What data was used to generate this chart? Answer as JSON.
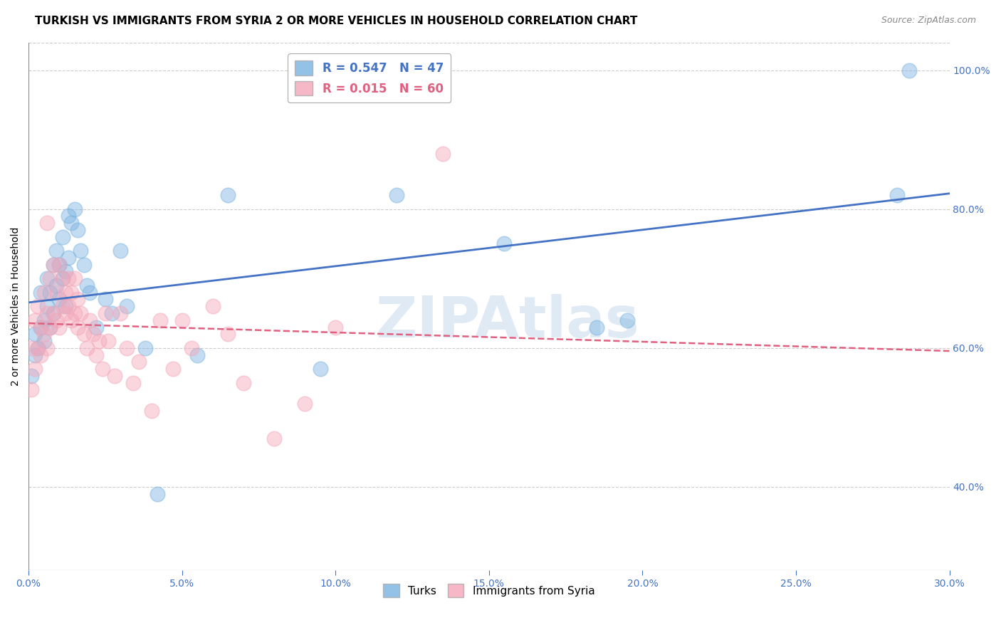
{
  "title": "TURKISH VS IMMIGRANTS FROM SYRIA 2 OR MORE VEHICLES IN HOUSEHOLD CORRELATION CHART",
  "source": "Source: ZipAtlas.com",
  "ylabel": "2 or more Vehicles in Household",
  "watermark": "ZIPAtlas",
  "legend_labels": [
    "Turks",
    "Immigrants from Syria"
  ],
  "xlim": [
    0.0,
    0.3
  ],
  "ylim": [
    0.28,
    1.04
  ],
  "xticks": [
    0.0,
    0.05,
    0.1,
    0.15,
    0.2,
    0.25,
    0.3
  ],
  "xtick_labels": [
    "0.0%",
    "5.0%",
    "10.0%",
    "15.0%",
    "20.0%",
    "25.0%",
    "30.0%"
  ],
  "yticks_right": [
    0.4,
    0.6,
    0.8,
    1.0
  ],
  "ytick_labels_right": [
    "40.0%",
    "60.0%",
    "80.0%",
    "100.0%"
  ],
  "axis_color": "#4472c4",
  "grid_color": "#cccccc",
  "background_color": "#ffffff",
  "blue_color": "#7ab3e0",
  "pink_color": "#f4a7b9",
  "blue_line_color": "#4472c4",
  "pink_line_color": "#e06080",
  "title_fontsize": 11,
  "blue_x": [
    0.001,
    0.002,
    0.002,
    0.003,
    0.004,
    0.004,
    0.005,
    0.005,
    0.006,
    0.006,
    0.007,
    0.007,
    0.008,
    0.008,
    0.009,
    0.009,
    0.01,
    0.01,
    0.011,
    0.011,
    0.012,
    0.012,
    0.013,
    0.013,
    0.014,
    0.015,
    0.016,
    0.017,
    0.018,
    0.019,
    0.02,
    0.022,
    0.025,
    0.027,
    0.03,
    0.032,
    0.038,
    0.042,
    0.055,
    0.065,
    0.095,
    0.12,
    0.155,
    0.185,
    0.195,
    0.283,
    0.287
  ],
  "blue_y": [
    0.56,
    0.59,
    0.62,
    0.6,
    0.63,
    0.68,
    0.64,
    0.61,
    0.66,
    0.7,
    0.63,
    0.68,
    0.72,
    0.65,
    0.69,
    0.74,
    0.67,
    0.72,
    0.7,
    0.76,
    0.71,
    0.66,
    0.73,
    0.79,
    0.78,
    0.8,
    0.77,
    0.74,
    0.72,
    0.69,
    0.68,
    0.63,
    0.67,
    0.65,
    0.74,
    0.66,
    0.6,
    0.39,
    0.59,
    0.82,
    0.57,
    0.82,
    0.75,
    0.63,
    0.64,
    0.82,
    1.0
  ],
  "pink_x": [
    0.001,
    0.001,
    0.002,
    0.002,
    0.003,
    0.003,
    0.004,
    0.004,
    0.005,
    0.005,
    0.006,
    0.006,
    0.006,
    0.007,
    0.007,
    0.008,
    0.008,
    0.009,
    0.009,
    0.01,
    0.01,
    0.011,
    0.011,
    0.012,
    0.012,
    0.013,
    0.013,
    0.014,
    0.014,
    0.015,
    0.015,
    0.016,
    0.016,
    0.017,
    0.018,
    0.019,
    0.02,
    0.021,
    0.022,
    0.023,
    0.024,
    0.025,
    0.026,
    0.028,
    0.03,
    0.032,
    0.034,
    0.036,
    0.04,
    0.043,
    0.047,
    0.05,
    0.053,
    0.06,
    0.065,
    0.07,
    0.08,
    0.09,
    0.1,
    0.135
  ],
  "pink_y": [
    0.54,
    0.6,
    0.57,
    0.64,
    0.6,
    0.66,
    0.59,
    0.63,
    0.62,
    0.68,
    0.65,
    0.6,
    0.78,
    0.63,
    0.7,
    0.65,
    0.72,
    0.64,
    0.68,
    0.63,
    0.72,
    0.66,
    0.7,
    0.65,
    0.68,
    0.66,
    0.7,
    0.64,
    0.68,
    0.65,
    0.7,
    0.63,
    0.67,
    0.65,
    0.62,
    0.6,
    0.64,
    0.62,
    0.59,
    0.61,
    0.57,
    0.65,
    0.61,
    0.56,
    0.65,
    0.6,
    0.55,
    0.58,
    0.51,
    0.64,
    0.57,
    0.64,
    0.6,
    0.66,
    0.62,
    0.55,
    0.47,
    0.52,
    0.63,
    0.88
  ],
  "blue_R": 0.547,
  "blue_N": 47,
  "pink_R": 0.015,
  "pink_N": 60
}
